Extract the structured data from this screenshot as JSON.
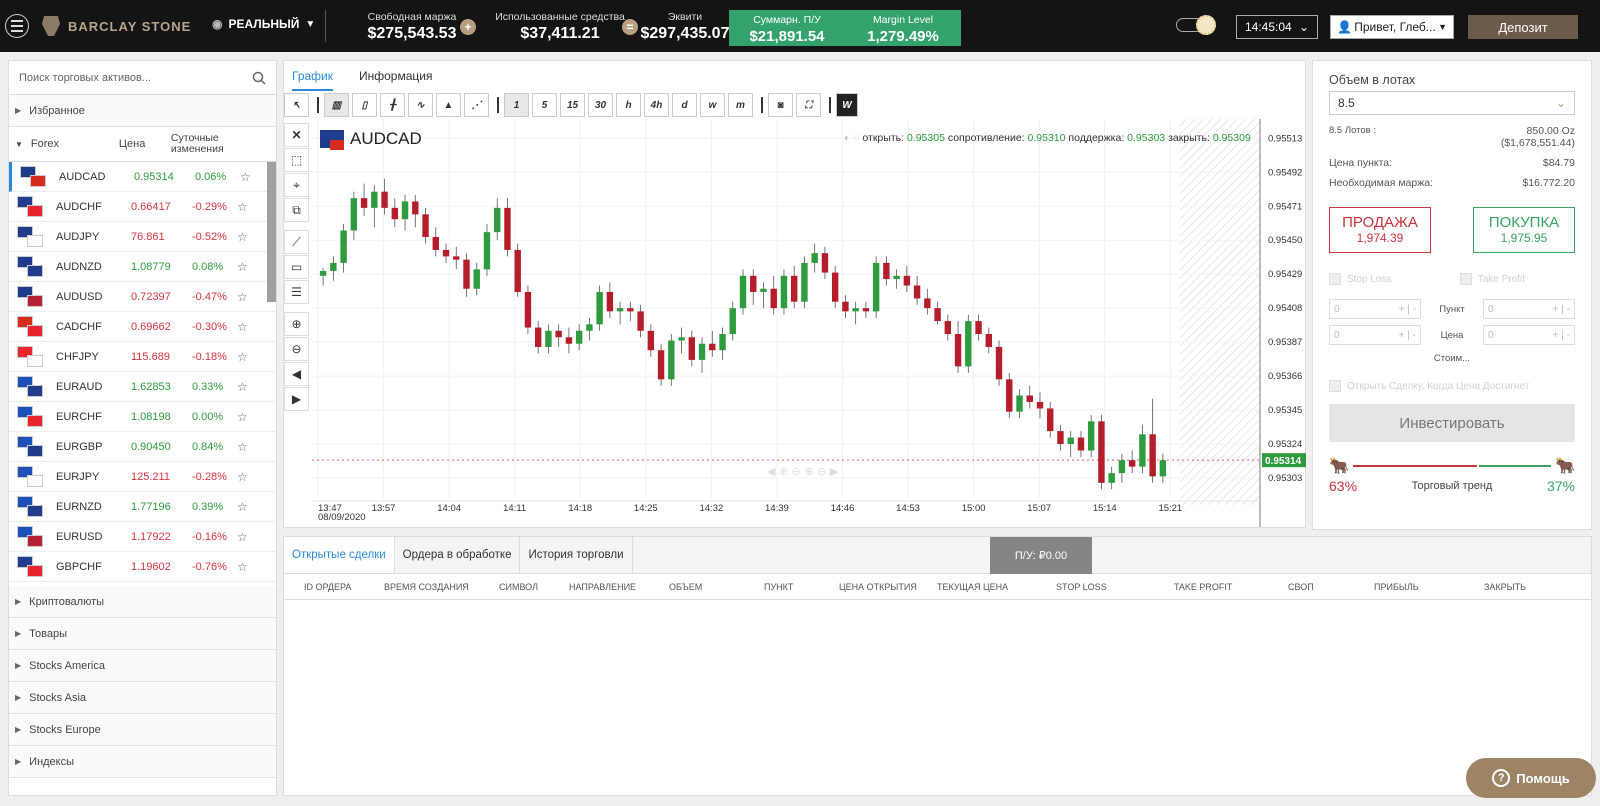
{
  "header": {
    "brand": "BARCLAY STONE",
    "account_type": "РЕАЛЬНЫЙ",
    "free_margin_label": "Свободная маржа",
    "free_margin": "$275,543.53",
    "used_funds_label": "Использованные средства",
    "used_funds": "$37,411.21",
    "equity_label": "Эквити",
    "equity": "$297,435.07",
    "total_pnl_label": "Суммарн. П/У",
    "total_pnl": "$21,891.54",
    "margin_level_label": "Margin Level",
    "margin_level": "1,279.49%",
    "time": "14:45:04",
    "greeting": "Привет, Глеб...",
    "deposit": "Депозит"
  },
  "sidebar": {
    "search_placeholder": "Поиск торговых активов...",
    "favorites": "Избранное",
    "forex": "Forex",
    "col_price": "Цена",
    "col_change": "Суточные изменения",
    "assets": [
      {
        "name": "AUDCAD",
        "price": "0.95314",
        "change": "0.06%",
        "up": true,
        "f1": "#1f3b8c",
        "f2": "#d52b1e"
      },
      {
        "name": "AUDCHF",
        "price": "0.66417",
        "change": "-0.29%",
        "up": false,
        "f1": "#1f3b8c",
        "f2": "#e8242d"
      },
      {
        "name": "AUDJPY",
        "price": "76.861",
        "change": "-0.52%",
        "up": false,
        "f1": "#1f3b8c",
        "f2": "#ffffff"
      },
      {
        "name": "AUDNZD",
        "price": "1.08779",
        "change": "0.08%",
        "up": true,
        "f1": "#1f3b8c",
        "f2": "#1f3b8c"
      },
      {
        "name": "AUDUSD",
        "price": "0.72397",
        "change": "-0.47%",
        "up": false,
        "f1": "#1f3b8c",
        "f2": "#b22234"
      },
      {
        "name": "CADCHF",
        "price": "0.69662",
        "change": "-0.30%",
        "up": false,
        "f1": "#d52b1e",
        "f2": "#e8242d"
      },
      {
        "name": "CHFJPY",
        "price": "115.689",
        "change": "-0.18%",
        "up": false,
        "f1": "#e8242d",
        "f2": "#ffffff"
      },
      {
        "name": "EURAUD",
        "price": "1.62853",
        "change": "0.33%",
        "up": true,
        "f1": "#1f4fb8",
        "f2": "#1f3b8c"
      },
      {
        "name": "EURCHF",
        "price": "1.08198",
        "change": "0.00%",
        "up": true,
        "f1": "#1f4fb8",
        "f2": "#e8242d"
      },
      {
        "name": "EURGBP",
        "price": "0.90450",
        "change": "0.84%",
        "up": true,
        "f1": "#1f4fb8",
        "f2": "#1f3b8c"
      },
      {
        "name": "EURJPY",
        "price": "125.211",
        "change": "-0.28%",
        "up": false,
        "f1": "#1f4fb8",
        "f2": "#ffffff"
      },
      {
        "name": "EURNZD",
        "price": "1.77196",
        "change": "0.39%",
        "up": true,
        "f1": "#1f4fb8",
        "f2": "#1f3b8c"
      },
      {
        "name": "EURUSD",
        "price": "1.17922",
        "change": "-0.16%",
        "up": false,
        "f1": "#1f4fb8",
        "f2": "#b22234"
      },
      {
        "name": "GBPCHF",
        "price": "1.19602",
        "change": "-0.76%",
        "up": false,
        "f1": "#1f3b8c",
        "f2": "#e8242d"
      }
    ],
    "categories": [
      "Криптовалюты",
      "Товары",
      "Stocks America",
      "Stocks Asia",
      "Stocks Europe",
      "Индексы"
    ]
  },
  "chart": {
    "tab_chart": "График",
    "tab_info": "Информация",
    "timeframes": [
      "1",
      "5",
      "15",
      "30",
      "h",
      "4h",
      "d",
      "w",
      "m"
    ],
    "symbol": "AUDCAD",
    "ohlc_open_label": "открыть:",
    "ohlc_open": "0.95305",
    "ohlc_res_label": "сопротивление:",
    "ohlc_res": "0.95310",
    "ohlc_sup_label": "поддержка:",
    "ohlc_sup": "0.95303",
    "ohlc_close_label": "закрыть:",
    "ohlc_close": "0.95309",
    "current_price": "0.95314",
    "date_label": "08/09/2020"
  },
  "chart_data": {
    "type": "candlestick",
    "ylim": [
      0.9529,
      0.9552
    ],
    "y_ticks": [
      "0.95513",
      "0.95492",
      "0.95471",
      "0.95450",
      "0.95429",
      "0.95408",
      "0.95387",
      "0.95366",
      "0.95345",
      "0.95324",
      "0.95303"
    ],
    "y_tick_values": [
      0.95513,
      0.95492,
      0.95471,
      0.9545,
      0.95429,
      0.95408,
      0.95387,
      0.95366,
      0.95345,
      0.95324,
      0.95303
    ],
    "x_ticks": [
      "13:47",
      "13:57",
      "14:04",
      "14:11",
      "14:18",
      "14:25",
      "14:32",
      "14:39",
      "14:46",
      "14:53",
      "15:00",
      "15:07",
      "15:14",
      "15:21"
    ],
    "current": 0.95314,
    "candles": [
      [
        0.95428,
        0.95433,
        0.95422,
        0.95431
      ],
      [
        0.95431,
        0.9544,
        0.95425,
        0.95436
      ],
      [
        0.95436,
        0.9546,
        0.9543,
        0.95456
      ],
      [
        0.95456,
        0.9548,
        0.9545,
        0.95476
      ],
      [
        0.95476,
        0.95485,
        0.95465,
        0.9547
      ],
      [
        0.9547,
        0.95484,
        0.95458,
        0.9548
      ],
      [
        0.9548,
        0.95488,
        0.95466,
        0.9547
      ],
      [
        0.9547,
        0.95476,
        0.95458,
        0.95463
      ],
      [
        0.95463,
        0.95478,
        0.95456,
        0.95474
      ],
      [
        0.95474,
        0.95478,
        0.95458,
        0.95466
      ],
      [
        0.95466,
        0.9547,
        0.95448,
        0.95452
      ],
      [
        0.95452,
        0.95458,
        0.9544,
        0.95444
      ],
      [
        0.95444,
        0.95448,
        0.95436,
        0.9544
      ],
      [
        0.9544,
        0.95446,
        0.95432,
        0.95438
      ],
      [
        0.95438,
        0.95442,
        0.95415,
        0.9542
      ],
      [
        0.9542,
        0.95436,
        0.95416,
        0.95432
      ],
      [
        0.95432,
        0.9546,
        0.95428,
        0.95455
      ],
      [
        0.95455,
        0.95476,
        0.9545,
        0.9547
      ],
      [
        0.9547,
        0.95476,
        0.9544,
        0.95444
      ],
      [
        0.95444,
        0.95448,
        0.95415,
        0.95418
      ],
      [
        0.95418,
        0.95422,
        0.95392,
        0.95396
      ],
      [
        0.95396,
        0.954,
        0.9538,
        0.95384
      ],
      [
        0.95384,
        0.95398,
        0.9538,
        0.95394
      ],
      [
        0.95394,
        0.95398,
        0.95384,
        0.9539
      ],
      [
        0.9539,
        0.95396,
        0.9538,
        0.95386
      ],
      [
        0.95386,
        0.95398,
        0.95382,
        0.95394
      ],
      [
        0.95394,
        0.95402,
        0.95388,
        0.95398
      ],
      [
        0.95398,
        0.95422,
        0.95394,
        0.95418
      ],
      [
        0.95418,
        0.95424,
        0.95402,
        0.95406
      ],
      [
        0.95406,
        0.95412,
        0.95398,
        0.95408
      ],
      [
        0.95408,
        0.95412,
        0.954,
        0.95406
      ],
      [
        0.95406,
        0.9541,
        0.9539,
        0.95394
      ],
      [
        0.95394,
        0.95398,
        0.95378,
        0.95382
      ],
      [
        0.95382,
        0.95386,
        0.9536,
        0.95364
      ],
      [
        0.95364,
        0.95392,
        0.9536,
        0.95388
      ],
      [
        0.95388,
        0.95396,
        0.9538,
        0.9539
      ],
      [
        0.9539,
        0.95394,
        0.95372,
        0.95376
      ],
      [
        0.95376,
        0.9539,
        0.95368,
        0.95386
      ],
      [
        0.95386,
        0.95394,
        0.95378,
        0.95382
      ],
      [
        0.95382,
        0.95396,
        0.95376,
        0.95392
      ],
      [
        0.95392,
        0.95412,
        0.95388,
        0.95408
      ],
      [
        0.95408,
        0.95432,
        0.95404,
        0.95428
      ],
      [
        0.95428,
        0.95432,
        0.9541,
        0.95418
      ],
      [
        0.95418,
        0.95424,
        0.95408,
        0.9542
      ],
      [
        0.9542,
        0.95428,
        0.95404,
        0.95408
      ],
      [
        0.95408,
        0.95432,
        0.95404,
        0.95428
      ],
      [
        0.95428,
        0.95434,
        0.95408,
        0.95412
      ],
      [
        0.95412,
        0.9544,
        0.95408,
        0.95436
      ],
      [
        0.95436,
        0.95448,
        0.9543,
        0.95442
      ],
      [
        0.95442,
        0.95446,
        0.95426,
        0.9543
      ],
      [
        0.9543,
        0.95434,
        0.95408,
        0.95412
      ],
      [
        0.95412,
        0.95416,
        0.95402,
        0.95406
      ],
      [
        0.95406,
        0.95412,
        0.95398,
        0.95408
      ],
      [
        0.95408,
        0.95412,
        0.95402,
        0.95406
      ],
      [
        0.95406,
        0.9544,
        0.95402,
        0.95436
      ],
      [
        0.95436,
        0.9544,
        0.95422,
        0.95426
      ],
      [
        0.95426,
        0.95432,
        0.9542,
        0.95428
      ],
      [
        0.95428,
        0.95434,
        0.95418,
        0.95422
      ],
      [
        0.95422,
        0.95428,
        0.9541,
        0.95414
      ],
      [
        0.95414,
        0.9542,
        0.95404,
        0.95408
      ],
      [
        0.95408,
        0.95412,
        0.95398,
        0.954
      ],
      [
        0.954,
        0.95404,
        0.95388,
        0.95392
      ],
      [
        0.95392,
        0.954,
        0.95368,
        0.95372
      ],
      [
        0.95372,
        0.95404,
        0.95368,
        0.954
      ],
      [
        0.954,
        0.95404,
        0.95388,
        0.95392
      ],
      [
        0.95392,
        0.95396,
        0.9538,
        0.95384
      ],
      [
        0.95384,
        0.95388,
        0.9536,
        0.95364
      ],
      [
        0.95364,
        0.95368,
        0.9534,
        0.95344
      ],
      [
        0.95344,
        0.95358,
        0.9534,
        0.95354
      ],
      [
        0.95354,
        0.9536,
        0.95346,
        0.9535
      ],
      [
        0.9535,
        0.95356,
        0.9534,
        0.95346
      ],
      [
        0.95346,
        0.9535,
        0.95328,
        0.95332
      ],
      [
        0.95332,
        0.95336,
        0.9532,
        0.95324
      ],
      [
        0.95324,
        0.95332,
        0.95316,
        0.95328
      ],
      [
        0.95328,
        0.95332,
        0.95316,
        0.9532
      ],
      [
        0.9532,
        0.95342,
        0.95316,
        0.95338
      ],
      [
        0.95338,
        0.95342,
        0.95296,
        0.953
      ],
      [
        0.953,
        0.9531,
        0.95296,
        0.95306
      ],
      [
        0.95306,
        0.95318,
        0.953,
        0.95314
      ],
      [
        0.95314,
        0.9532,
        0.95306,
        0.9531
      ],
      [
        0.9531,
        0.95336,
        0.95306,
        0.9533
      ],
      [
        0.9533,
        0.95352,
        0.953,
        0.95304
      ],
      [
        0.95304,
        0.95318,
        0.953,
        0.95314
      ]
    ]
  },
  "trade": {
    "volume_label": "Объем в лотах",
    "volume": "8.5",
    "lots_label": "8.5 Лотов :",
    "lots_value": "850.00 Oz",
    "lots_value2": "($1,678,551.44)",
    "pip_label": "Цена пункта:",
    "pip_value": "$84.79",
    "margin_label": "Необходимая маржа:",
    "margin_value": "$16.772.20",
    "sell_label": "ПРОДАЖА",
    "sell_price": "1,974.39",
    "buy_label": "ПОКУПКА",
    "buy_price": "1,975.95",
    "stop_loss": "Stop Loss",
    "take_profit": "Take Profit",
    "point_label": "Пункт",
    "price_label": "Цена",
    "cost_label": "Стоим...",
    "open_when_label": "Открыть Сделку, Когда Цена Достигнет",
    "zero": "0",
    "invest": "Инвестировать",
    "bear_pct": "63%",
    "bull_pct": "37%",
    "trend_label": "Торговый тренд"
  },
  "orders": {
    "tabs": [
      "Открытые сделки",
      "Ордера в обработке",
      "История торговли"
    ],
    "pnl": "П/У: ₽0.00",
    "columns": [
      "ID ОРДЕРА",
      "ВРЕМЯ СОЗДАНИЯ",
      "СИМВОЛ",
      "НАПРАВЛЕНИЕ",
      "ОБЪЕМ",
      "ПУНКТ",
      "ЦЕНА ОТКРЫТИЯ",
      "ТЕКУЩАЯ ЦЕНА",
      "STOP LOSS",
      "TAKE PROFIT",
      "СВОП",
      "ПРИБЫЛЬ",
      "ЗАКРЫТЬ"
    ]
  },
  "help": "Помощь",
  "colors": {
    "up": "#2e9c3e",
    "down": "#b51d2a",
    "accent": "#2d8ad6",
    "pnl_bg": "#33a26d",
    "gold": "#b8a07e"
  }
}
